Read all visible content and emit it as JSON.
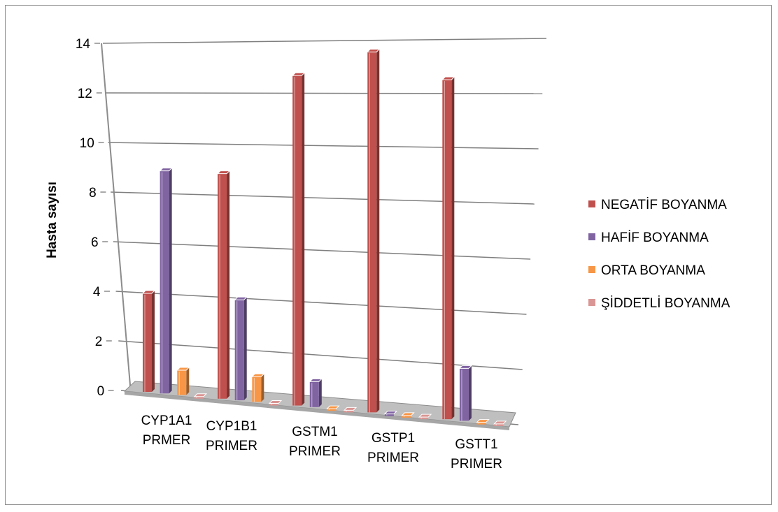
{
  "chart_data": {
    "type": "bar",
    "title": "",
    "xlabel": "",
    "ylabel": "Hasta sayısı",
    "ylim": [
      0,
      14
    ],
    "yticks": [
      "0",
      "2",
      "4",
      "6",
      "8",
      "10",
      "12",
      "14"
    ],
    "categories": [
      [
        "CYP1A1",
        "PRMER"
      ],
      [
        "CYP1B1",
        "PRIMER"
      ],
      [
        "GSTM1",
        "PRIMER"
      ],
      [
        "GSTP1",
        "PRIMER"
      ],
      [
        "GSTT1",
        "PRIMER"
      ]
    ],
    "series": [
      {
        "name": "NEGATİF BOYANMA",
        "color": "#c0504d",
        "values": [
          4,
          9,
          13,
          14,
          13
        ]
      },
      {
        "name": "HAFİF BOYANMA",
        "color": "#8064a2",
        "values": [
          9,
          4,
          1,
          0,
          2
        ]
      },
      {
        "name": "ORTA BOYANMA",
        "color": "#f79646",
        "values": [
          1,
          1,
          0,
          0,
          0
        ]
      },
      {
        "name": "ŞİDDETLİ BOYANMA",
        "color": "#d99694",
        "values": [
          0,
          0,
          0,
          0,
          0
        ]
      }
    ],
    "grid": true,
    "legend": "right"
  }
}
